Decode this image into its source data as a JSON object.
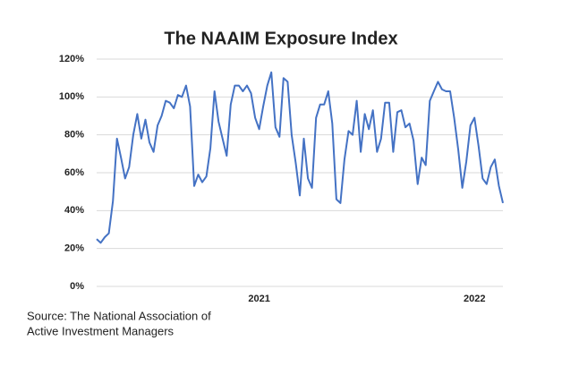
{
  "chart_data": {
    "type": "line",
    "title": "The NAAIM Exposure Index",
    "annotations": [
      "Source: The National Association of",
      "Active Investment Managers"
    ],
    "categories": [
      null,
      null,
      null,
      null,
      null,
      null,
      null,
      null,
      null,
      null,
      null,
      null,
      null,
      null,
      null,
      null,
      null,
      null,
      null,
      null,
      null,
      null,
      null,
      null,
      null,
      null,
      null,
      null,
      null,
      null,
      null,
      null,
      null,
      null,
      null,
      null,
      null,
      null,
      null,
      null,
      "2021",
      null,
      null,
      null,
      null,
      null,
      null,
      null,
      null,
      null,
      null,
      null,
      null,
      null,
      null,
      null,
      null,
      null,
      null,
      null,
      null,
      null,
      null,
      null,
      null,
      null,
      null,
      null,
      null,
      null,
      null,
      null,
      null,
      null,
      null,
      null,
      null,
      null,
      null,
      null,
      null,
      null,
      null,
      null,
      null,
      null,
      null,
      null,
      null,
      null,
      null,
      null,
      null,
      "2022",
      null,
      null,
      null,
      null,
      null,
      null,
      null
    ],
    "series": [
      {
        "name": "NAAIM Exposure Index",
        "color": "#4472c4",
        "values": [
          25,
          23,
          26,
          28,
          45,
          78,
          68,
          57,
          63,
          80,
          91,
          78,
          88,
          76,
          71,
          85,
          90,
          98,
          97,
          94,
          101,
          100,
          106,
          95,
          53,
          59,
          55,
          58,
          73,
          103,
          87,
          78,
          69,
          96,
          106,
          106,
          103,
          106,
          102,
          89,
          83,
          95,
          106,
          113,
          84,
          79,
          110,
          108,
          80,
          65,
          48,
          78,
          57,
          52,
          89,
          96,
          96,
          103,
          86,
          46,
          44,
          67,
          82,
          80,
          98,
          71,
          91,
          83,
          93,
          71,
          78,
          97,
          97,
          71,
          92,
          93,
          84,
          86,
          77,
          54,
          68,
          64,
          98,
          103,
          108,
          104,
          103,
          103,
          89,
          72,
          52,
          66,
          85,
          89,
          74,
          57,
          54,
          63,
          67,
          53,
          44
        ]
      }
    ],
    "ylim": [
      0,
      120
    ],
    "yticks": [
      {
        "value": 0,
        "label": "0%"
      },
      {
        "value": 20,
        "label": "20%"
      },
      {
        "value": 40,
        "label": "40%"
      },
      {
        "value": 60,
        "label": "60%"
      },
      {
        "value": 80,
        "label": "80%"
      },
      {
        "value": 100,
        "label": "100%"
      },
      {
        "value": 120,
        "label": "120%"
      }
    ],
    "grid": true
  }
}
